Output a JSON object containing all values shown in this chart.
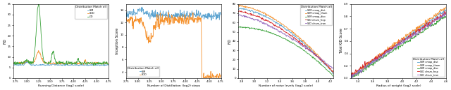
{
  "panels": [
    {
      "title": "Distribution Match all",
      "xlabel": "Running Distance (log2 scale)",
      "ylabel": "FID",
      "legend_labels": [
        "SIM",
        "SDD",
        "GD"
      ],
      "legend_colors": [
        "#5ba3d0",
        "#f5922f",
        "#3ca33c"
      ],
      "xlim": [
        2.71,
        4.75
      ],
      "ylim": [
        0,
        35
      ]
    },
    {
      "title": "Distribution Match all",
      "xlabel": "Number of Distillation (log2) steps",
      "ylabel": "Inception Score",
      "legend_labels": [
        "SIM",
        "SDD"
      ],
      "legend_colors": [
        "#5ba3d0",
        "#f5922f"
      ],
      "xlim": [
        2.75,
        4.75
      ],
      "ylim": [
        3,
        15
      ]
    },
    {
      "title": "Distribution Match all",
      "xlabel": "Number of noise levels (log2 scale)",
      "ylabel": "FID",
      "legend_labels": [
        "SIM cmap_dist",
        "SIM cmap_tham",
        "SIM cmap_disc",
        "SID cham_frep",
        "SID cham_tran"
      ],
      "legend_colors": [
        "#5ba3d0",
        "#f5922f",
        "#3ca33c",
        "#d62728",
        "#9467bd"
      ],
      "xlim": [
        2.75,
        4.25
      ],
      "ylim": [
        0,
        80
      ]
    },
    {
      "title": "Distribution Match all",
      "xlabel": "Radius of weight (log2 scale)",
      "ylabel": "Total KID Score",
      "legend_labels": [
        "SIM cmap_dist",
        "SIM cmap_tham",
        "SIM cmap_disc",
        "SID cham_frep",
        "SID cham_tran"
      ],
      "legend_colors": [
        "#5ba3d0",
        "#f5922f",
        "#3ca33c",
        "#d62728",
        "#9467bd"
      ],
      "xlim": [
        3.3,
        4.6
      ],
      "ylim": [
        0.3,
        0.9
      ]
    }
  ]
}
